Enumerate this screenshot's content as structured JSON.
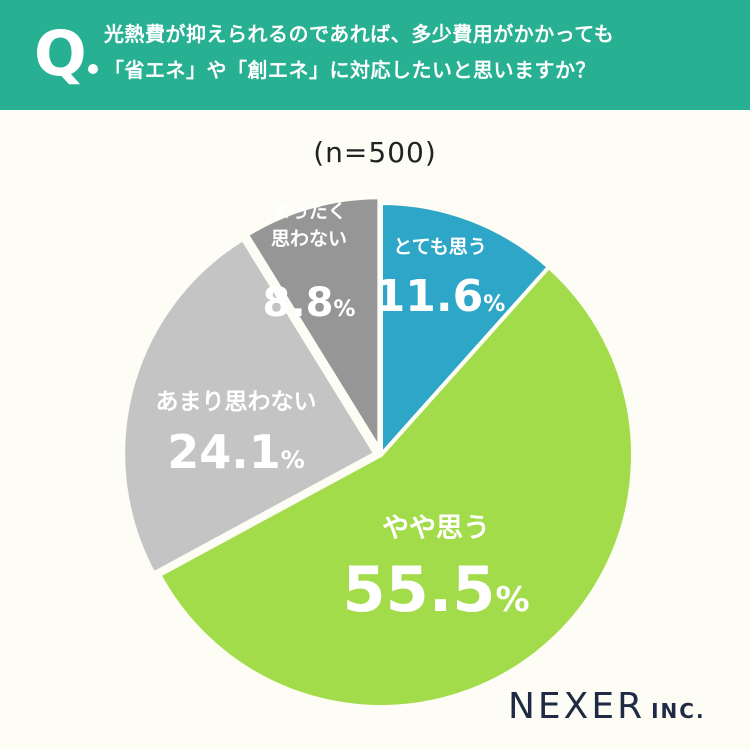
{
  "header": {
    "q_mark": "Q",
    "question_line1": "光熱費が抑えられるのであれば、多少費用がかかっても",
    "question_line2": "「省エネ」や「創エネ」に対応したいと思いますか？"
  },
  "sample_size": "(n=500)",
  "brand": {
    "name": "NEXER",
    "suffix": "INC."
  },
  "colors": {
    "header_bg": "#27b091",
    "very_much": "#2ea6c8",
    "somewhat": "#a3dc4a",
    "not_much": "#c4c4c4",
    "not_at_all": "#969696"
  },
  "chart_data": {
    "type": "pie",
    "start": "top",
    "direction": "clockwise",
    "unit": "%",
    "slices": [
      {
        "label": [
          "とても思う"
        ],
        "value": 11.6,
        "color": "#2ea6c8"
      },
      {
        "label": [
          "やや思う"
        ],
        "value": 55.5,
        "color": "#a3dc4a"
      },
      {
        "label": [
          "あまり思わない"
        ],
        "value": 24.1,
        "color": "#c4c4c4"
      },
      {
        "label": [
          "まったく",
          "思わない"
        ],
        "value": 8.8,
        "color": "#969696"
      }
    ]
  }
}
